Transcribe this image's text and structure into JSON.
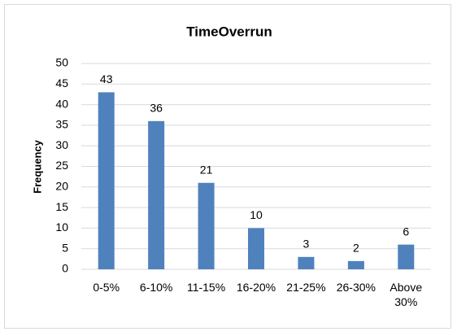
{
  "chart_data": {
    "type": "bar",
    "title": "TimeOverrun",
    "y_label": "Frequency",
    "categories": [
      "0-5%",
      "6-10%",
      "11-15%",
      "16-20%",
      "21-25%",
      "26-30%",
      "Above 30%"
    ],
    "values": [
      43,
      36,
      21,
      10,
      3,
      2,
      6
    ],
    "color": "#4f81bd",
    "ylim": [
      0,
      50
    ],
    "yticks": [
      0,
      5,
      10,
      15,
      20,
      25,
      30,
      35,
      40,
      45,
      50
    ],
    "grid": true
  }
}
